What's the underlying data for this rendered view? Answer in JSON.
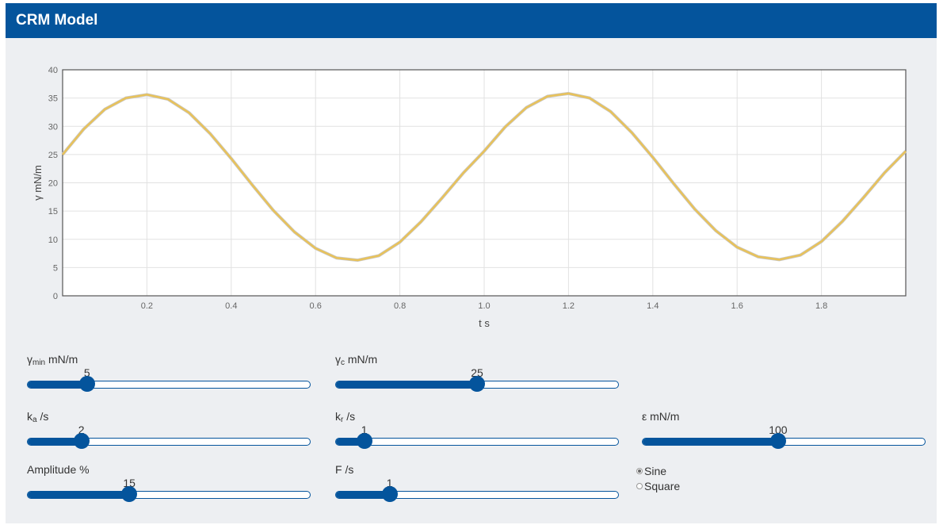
{
  "app": {
    "title": "CRM Model"
  },
  "chart_data": {
    "type": "line",
    "title": "",
    "xlabel": "t s",
    "ylabel": "γ mN/m",
    "xlim": [
      0,
      2
    ],
    "ylim": [
      0,
      40
    ],
    "x_ticks": [
      "0.2",
      "0.4",
      "0.6",
      "0.8",
      "1.0",
      "1.2",
      "1.4",
      "1.6",
      "1.8"
    ],
    "y_ticks": [
      "0",
      "5",
      "10",
      "15",
      "20",
      "25",
      "30",
      "35",
      "40"
    ],
    "grid": true,
    "series_color": "#e8c25a",
    "series": [
      {
        "x": [
          0,
          0.05,
          0.1,
          0.15,
          0.2,
          0.25,
          0.3,
          0.35,
          0.4,
          0.45,
          0.5,
          0.55,
          0.6,
          0.65,
          0.7,
          0.75,
          0.8,
          0.85,
          0.9,
          0.95,
          1.0,
          1.05,
          1.1,
          1.15,
          1.2,
          1.25,
          1.3,
          1.35,
          1.4,
          1.45,
          1.5,
          1.55,
          1.6,
          1.65,
          1.7,
          1.75,
          1.8,
          1.85,
          1.9,
          1.95,
          2.0
        ],
        "values": [
          25.0,
          29.5,
          33.0,
          35.0,
          35.6,
          34.8,
          32.4,
          28.7,
          24.3,
          19.6,
          15.1,
          11.3,
          8.4,
          6.7,
          6.3,
          7.1,
          9.5,
          13.1,
          17.3,
          21.7,
          25.6,
          29.9,
          33.3,
          35.3,
          35.8,
          35.0,
          32.6,
          28.9,
          24.5,
          19.8,
          15.3,
          11.5,
          8.6,
          6.9,
          6.4,
          7.2,
          9.6,
          13.2,
          17.4,
          21.8,
          25.6
        ]
      }
    ]
  },
  "controls": {
    "gmin": {
      "label": "γ",
      "sub": "min",
      "unit": " mN/m",
      "value": "5",
      "fraction": 0.21
    },
    "gc": {
      "label": "γ",
      "sub": "c",
      "unit": " mN/m",
      "value": "25",
      "fraction": 0.5
    },
    "ka": {
      "label": "k",
      "sub": "a",
      "unit": " /s",
      "value": "2",
      "fraction": 0.19
    },
    "kr": {
      "label": "k",
      "sub": "r",
      "unit": " /s",
      "value": "1",
      "fraction": 0.1
    },
    "eps": {
      "label": "ε mN/m",
      "value": "100",
      "fraction": 0.48
    },
    "amp": {
      "label": "Amplitude %",
      "value": "15",
      "fraction": 0.36
    },
    "freq": {
      "label": "F /s",
      "value": "1",
      "fraction": 0.19
    }
  },
  "waveform": {
    "options": [
      "Sine",
      "Square"
    ],
    "selected": "Sine"
  },
  "colors": {
    "accent": "#04549c",
    "panel": "#edeff2",
    "line": "#e8c25a"
  }
}
